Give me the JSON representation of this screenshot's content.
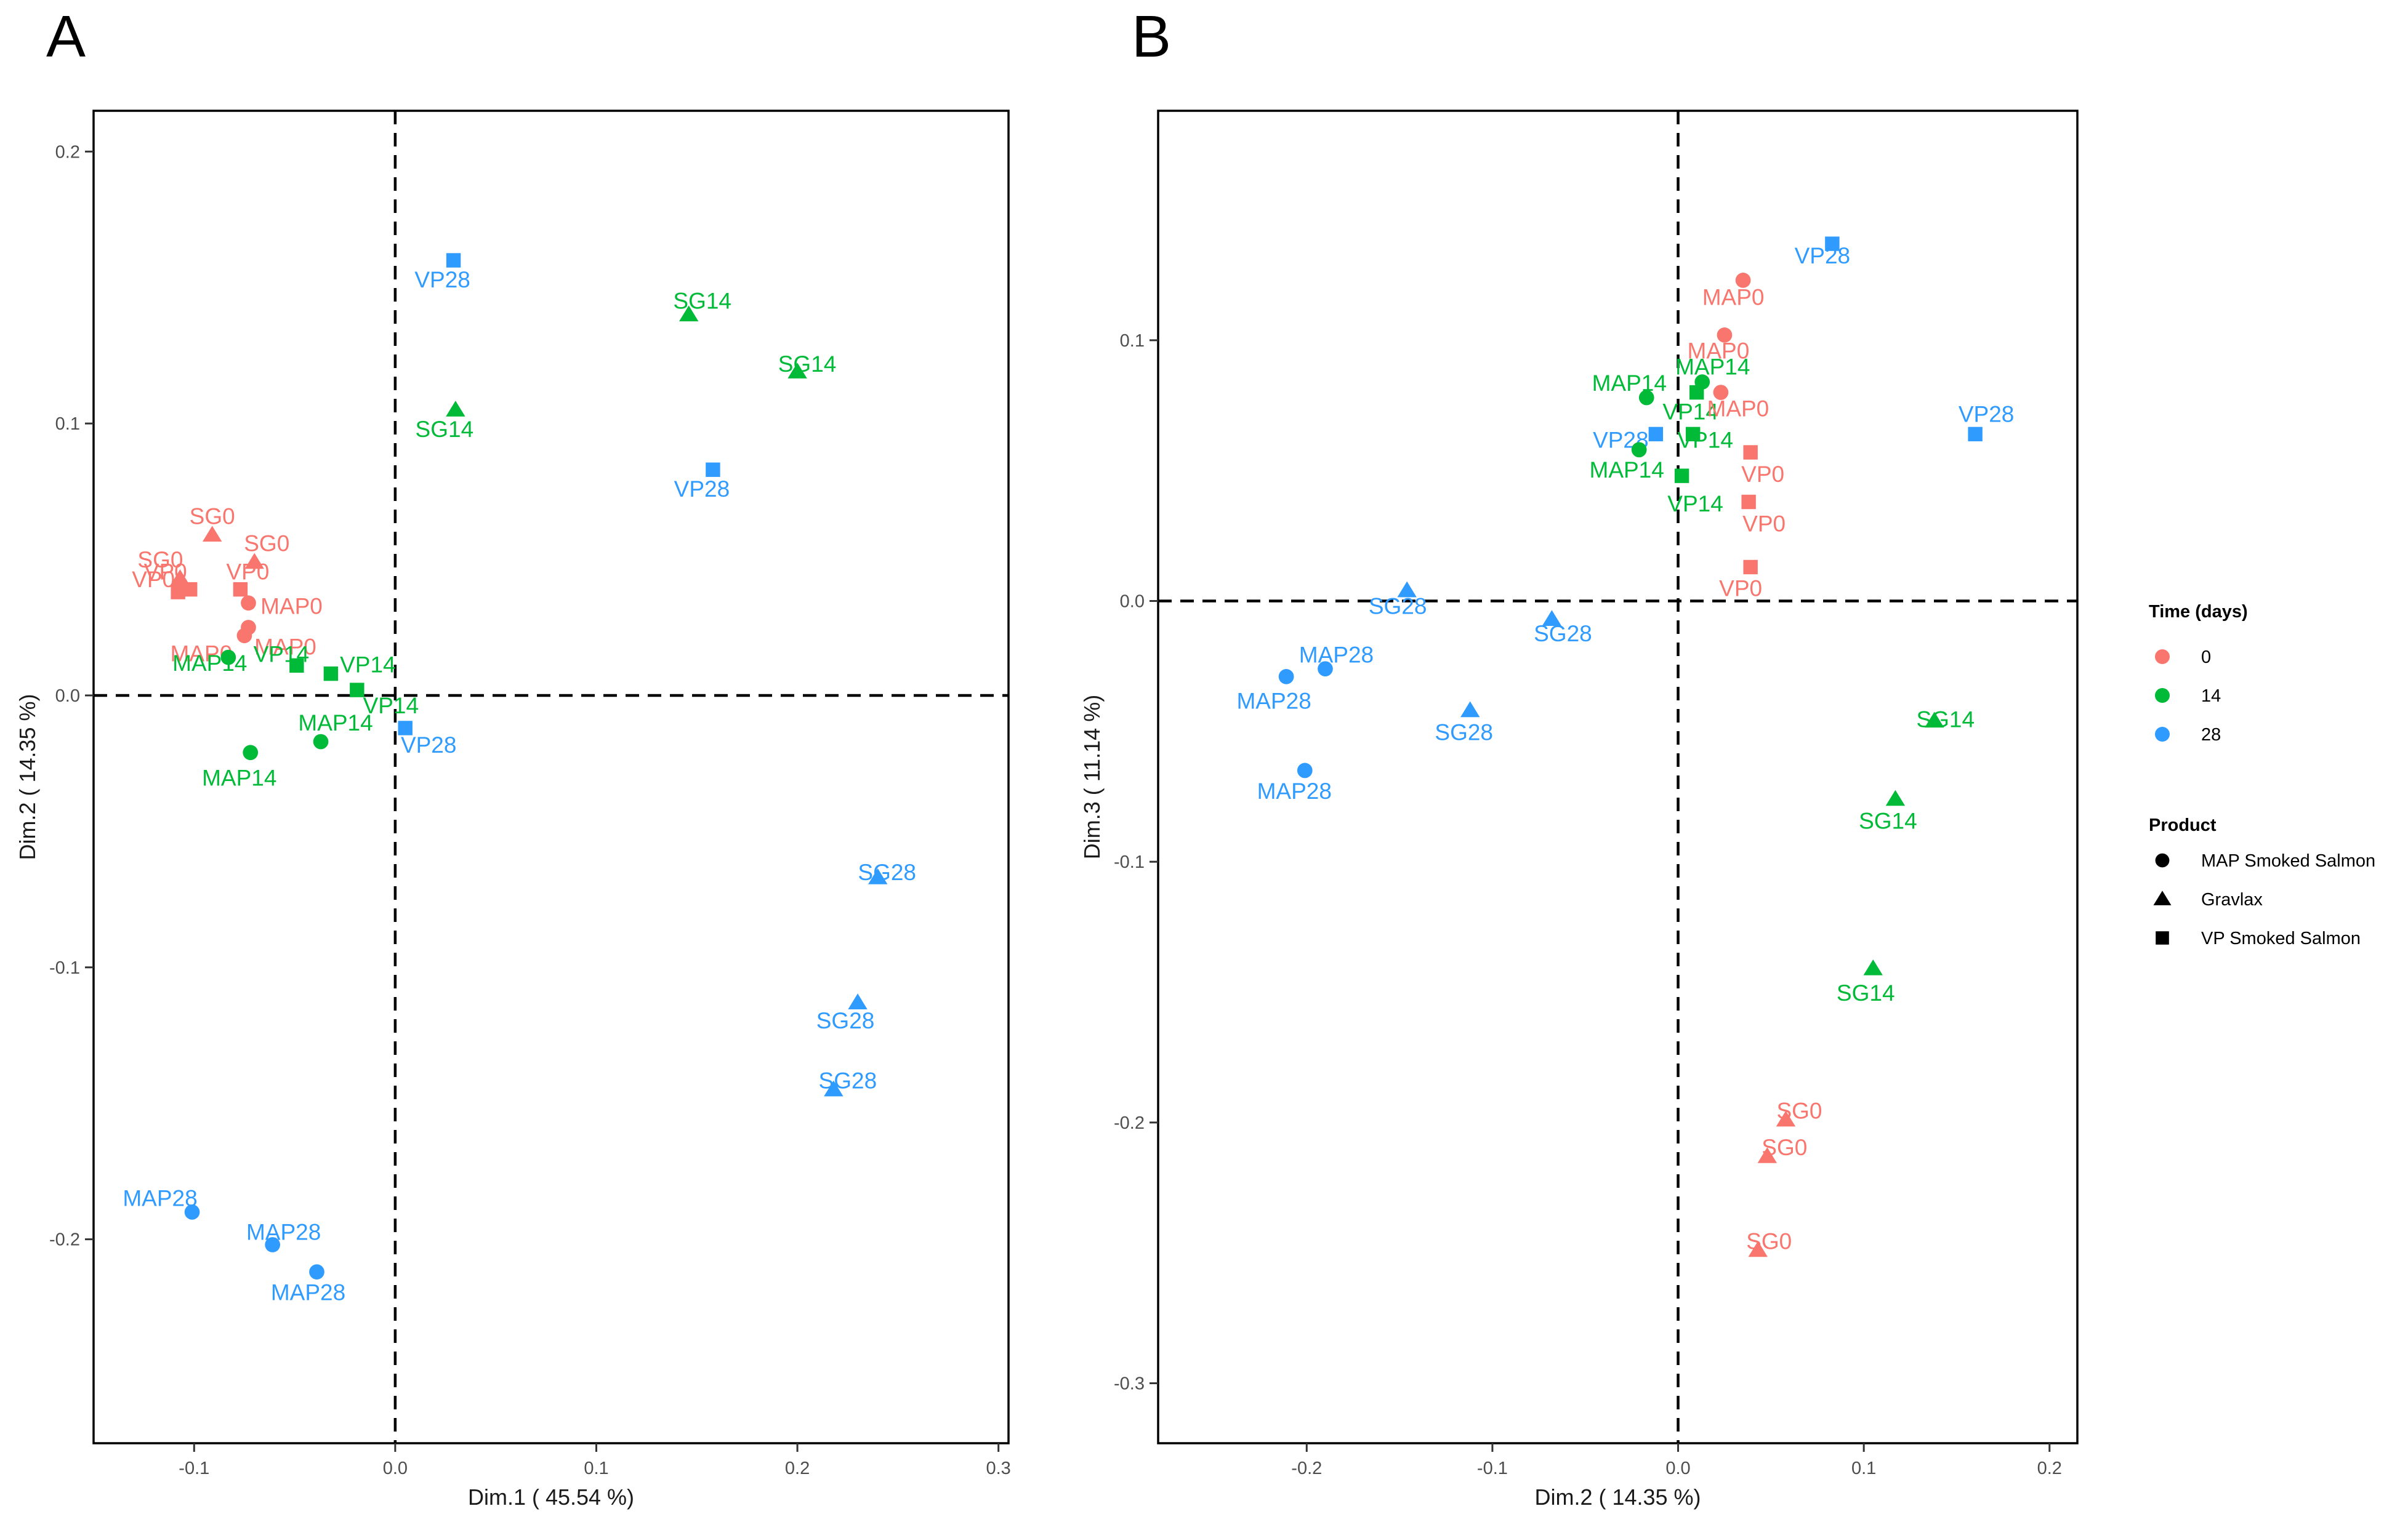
{
  "colors": {
    "0": "#F8766D",
    "14": "#00BA38",
    "28": "#2F9BFF"
  },
  "chart_data": [
    {
      "panel": "A",
      "type": "scatter",
      "xlabel": "Dim.1 ( 45.54 %)",
      "ylabel": "Dim.2 ( 14.35 %)",
      "xlim": [
        -0.15,
        0.305
      ],
      "ylim": [
        -0.275,
        0.215
      ],
      "xticks": [
        -0.1,
        0.0,
        0.1,
        0.2,
        0.3
      ],
      "yticks": [
        -0.2,
        -0.1,
        0.0,
        0.1,
        0.2
      ],
      "points": [
        {
          "label": "SG0",
          "time": "0",
          "product": "Gravlax",
          "x": -0.091,
          "y": 0.059
        },
        {
          "label": "SG0",
          "time": "0",
          "product": "Gravlax",
          "x": -0.07,
          "y": 0.049
        },
        {
          "label": "SG0",
          "time": "0",
          "product": "Gravlax",
          "x": -0.107,
          "y": 0.043
        },
        {
          "label": "VP0",
          "time": "0",
          "product": "VP Smoked Salmon",
          "x": -0.102,
          "y": 0.039
        },
        {
          "label": "VP0",
          "time": "0",
          "product": "VP Smoked Salmon",
          "x": -0.077,
          "y": 0.039
        },
        {
          "label": "VP0",
          "time": "0",
          "product": "VP Smoked Salmon",
          "x": -0.108,
          "y": 0.038
        },
        {
          "label": "MAP0",
          "time": "0",
          "product": "MAP Smoked Salmon",
          "x": -0.073,
          "y": 0.034
        },
        {
          "label": "MAP0",
          "time": "0",
          "product": "MAP Smoked Salmon",
          "x": -0.073,
          "y": 0.025
        },
        {
          "label": "MAP0",
          "time": "0",
          "product": "MAP Smoked Salmon",
          "x": -0.075,
          "y": 0.022
        },
        {
          "label": "MAP14",
          "time": "14",
          "product": "MAP Smoked Salmon",
          "x": -0.083,
          "y": 0.014
        },
        {
          "label": "VP14",
          "time": "14",
          "product": "VP Smoked Salmon",
          "x": -0.049,
          "y": 0.011
        },
        {
          "label": "VP14",
          "time": "14",
          "product": "VP Smoked Salmon",
          "x": -0.032,
          "y": 0.008
        },
        {
          "label": "VP14",
          "time": "14",
          "product": "VP Smoked Salmon",
          "x": -0.019,
          "y": 0.002
        },
        {
          "label": "MAP14",
          "time": "14",
          "product": "MAP Smoked Salmon",
          "x": -0.037,
          "y": -0.017
        },
        {
          "label": "MAP14",
          "time": "14",
          "product": "MAP Smoked Salmon",
          "x": -0.072,
          "y": -0.021
        },
        {
          "label": "VP28",
          "time": "28",
          "product": "VP Smoked Salmon",
          "x": 0.005,
          "y": -0.012
        },
        {
          "label": "VP28",
          "time": "28",
          "product": "VP Smoked Salmon",
          "x": 0.029,
          "y": 0.16
        },
        {
          "label": "SG14",
          "time": "14",
          "product": "Gravlax",
          "x": 0.146,
          "y": 0.14
        },
        {
          "label": "SG14",
          "time": "14",
          "product": "Gravlax",
          "x": 0.2,
          "y": 0.119
        },
        {
          "label": "SG14",
          "time": "14",
          "product": "Gravlax",
          "x": 0.03,
          "y": 0.105
        },
        {
          "label": "VP28",
          "time": "28",
          "product": "VP Smoked Salmon",
          "x": 0.158,
          "y": 0.083
        },
        {
          "label": "SG28",
          "time": "28",
          "product": "Gravlax",
          "x": 0.24,
          "y": -0.067
        },
        {
          "label": "SG28",
          "time": "28",
          "product": "Gravlax",
          "x": 0.23,
          "y": -0.113
        },
        {
          "label": "SG28",
          "time": "28",
          "product": "Gravlax",
          "x": 0.218,
          "y": -0.145
        },
        {
          "label": "MAP28",
          "time": "28",
          "product": "MAP Smoked Salmon",
          "x": -0.101,
          "y": -0.19
        },
        {
          "label": "MAP28",
          "time": "28",
          "product": "MAP Smoked Salmon",
          "x": -0.061,
          "y": -0.202
        },
        {
          "label": "MAP28",
          "time": "28",
          "product": "MAP Smoked Salmon",
          "x": -0.039,
          "y": -0.212
        }
      ]
    },
    {
      "panel": "B",
      "type": "scatter",
      "xlabel": "Dim.2 ( 14.35 %)",
      "ylabel": "Dim.3 ( 11.14 %)",
      "xlim": [
        -0.28,
        0.215
      ],
      "ylim": [
        -0.323,
        0.188
      ],
      "xticks": [
        -0.2,
        -0.1,
        0.0,
        0.1,
        0.2
      ],
      "yticks": [
        -0.3,
        -0.2,
        -0.1,
        0.0,
        0.1
      ],
      "points": [
        {
          "label": "VP28",
          "time": "28",
          "product": "VP Smoked Salmon",
          "x": 0.083,
          "y": 0.137
        },
        {
          "label": "MAP0",
          "time": "0",
          "product": "MAP Smoked Salmon",
          "x": 0.035,
          "y": 0.123
        },
        {
          "label": "MAP0",
          "time": "0",
          "product": "MAP Smoked Salmon",
          "x": 0.025,
          "y": 0.102
        },
        {
          "label": "MAP14",
          "time": "14",
          "product": "MAP Smoked Salmon",
          "x": 0.013,
          "y": 0.084
        },
        {
          "label": "MAP14",
          "time": "14",
          "product": "MAP Smoked Salmon",
          "x": -0.017,
          "y": 0.078
        },
        {
          "label": "VP14",
          "time": "14",
          "product": "VP Smoked Salmon",
          "x": 0.01,
          "y": 0.08
        },
        {
          "label": "MAP0",
          "time": "0",
          "product": "MAP Smoked Salmon",
          "x": 0.023,
          "y": 0.08
        },
        {
          "label": "VP28",
          "time": "28",
          "product": "VP Smoked Salmon",
          "x": 0.16,
          "y": 0.064
        },
        {
          "label": "VP28",
          "time": "28",
          "product": "VP Smoked Salmon",
          "x": -0.012,
          "y": 0.064
        },
        {
          "label": "VP14",
          "time": "14",
          "product": "VP Smoked Salmon",
          "x": 0.008,
          "y": 0.064
        },
        {
          "label": "MAP14",
          "time": "14",
          "product": "MAP Smoked Salmon",
          "x": -0.021,
          "y": 0.058
        },
        {
          "label": "VP0",
          "time": "0",
          "product": "VP Smoked Salmon",
          "x": 0.039,
          "y": 0.057
        },
        {
          "label": "VP14",
          "time": "14",
          "product": "VP Smoked Salmon",
          "x": 0.002,
          "y": 0.048
        },
        {
          "label": "VP0",
          "time": "0",
          "product": "VP Smoked Salmon",
          "x": 0.038,
          "y": 0.038
        },
        {
          "label": "VP0",
          "time": "0",
          "product": "VP Smoked Salmon",
          "x": 0.039,
          "y": 0.013
        },
        {
          "label": "SG28",
          "time": "28",
          "product": "Gravlax",
          "x": -0.146,
          "y": 0.004
        },
        {
          "label": "SG28",
          "time": "28",
          "product": "Gravlax",
          "x": -0.068,
          "y": -0.007
        },
        {
          "label": "MAP28",
          "time": "28",
          "product": "MAP Smoked Salmon",
          "x": -0.19,
          "y": -0.026
        },
        {
          "label": "MAP28",
          "time": "28",
          "product": "MAP Smoked Salmon",
          "x": -0.211,
          "y": -0.029
        },
        {
          "label": "SG28",
          "time": "28",
          "product": "Gravlax",
          "x": -0.112,
          "y": -0.042
        },
        {
          "label": "MAP28",
          "time": "28",
          "product": "MAP Smoked Salmon",
          "x": -0.201,
          "y": -0.065
        },
        {
          "label": "SG14",
          "time": "14",
          "product": "Gravlax",
          "x": 0.138,
          "y": -0.046
        },
        {
          "label": "SG14",
          "time": "14",
          "product": "Gravlax",
          "x": 0.117,
          "y": -0.076
        },
        {
          "label": "SG14",
          "time": "14",
          "product": "Gravlax",
          "x": 0.105,
          "y": -0.141
        },
        {
          "label": "SG0",
          "time": "0",
          "product": "Gravlax",
          "x": 0.058,
          "y": -0.199
        },
        {
          "label": "SG0",
          "time": "0",
          "product": "Gravlax",
          "x": 0.048,
          "y": -0.213
        },
        {
          "label": "SG0",
          "time": "0",
          "product": "Gravlax",
          "x": 0.043,
          "y": -0.249
        }
      ]
    }
  ],
  "legend": {
    "placement": "right",
    "time": {
      "title": "Time (days)",
      "entries": [
        "0",
        "14",
        "28"
      ]
    },
    "product": {
      "title": "Product",
      "entries": [
        {
          "label": "MAP Smoked Salmon",
          "shape": "circle"
        },
        {
          "label": "Gravlax",
          "shape": "triangle"
        },
        {
          "label": "VP Smoked Salmon",
          "shape": "square"
        }
      ]
    }
  }
}
